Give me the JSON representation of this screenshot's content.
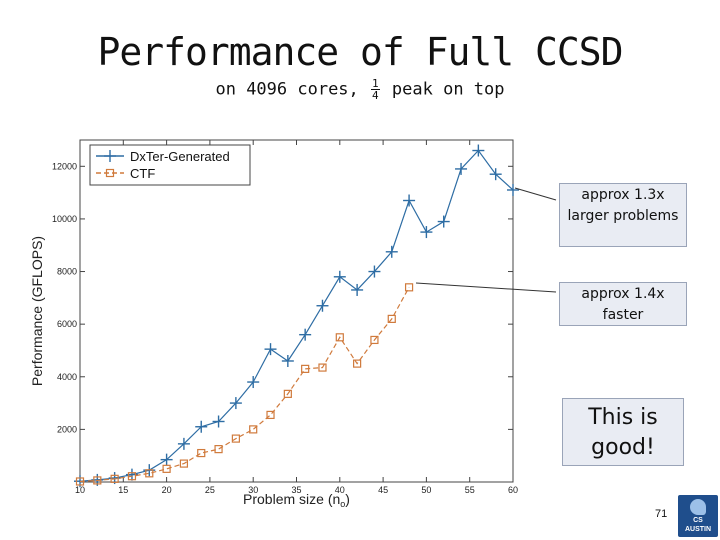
{
  "slide": {
    "title": "Performance of Full CCSD",
    "subtitle_before": "on 4096 cores,",
    "subtitle_frac_num": "1",
    "subtitle_frac_den": "4",
    "subtitle_after": "peak on top",
    "callouts": [
      "approx 1.3x larger problems",
      "approx 1.4x faster",
      "This is good!"
    ],
    "page_number": "71",
    "logo_text_1": "CS",
    "logo_text_2": "AUSTIN"
  },
  "chart_data": {
    "type": "line",
    "title": "",
    "xlabel": "Problem size (n",
    "xlabel_sub": "o",
    "xlabel_end": ")",
    "ylabel": "Performance (GFLOPS)",
    "xlim": [
      10,
      60
    ],
    "ylim": [
      0,
      13000
    ],
    "xticks": [
      10,
      15,
      20,
      25,
      30,
      35,
      40,
      45,
      50,
      55,
      60
    ],
    "yticks": [
      2000,
      4000,
      6000,
      8000,
      10000,
      12000
    ],
    "legend_position": "top-left",
    "series": [
      {
        "name": "DxTer-Generated",
        "color": "#2e6da4",
        "marker": "plus",
        "dashed": false,
        "x": [
          10,
          12,
          14,
          16,
          18,
          20,
          22,
          24,
          26,
          28,
          30,
          32,
          34,
          36,
          38,
          40,
          42,
          44,
          46,
          48,
          50,
          52,
          54,
          56,
          58,
          60
        ],
        "y": [
          30,
          80,
          150,
          280,
          450,
          850,
          1450,
          2100,
          2300,
          3000,
          3800,
          5050,
          4600,
          5600,
          6700,
          7800,
          7300,
          8000,
          8750,
          10700,
          9500,
          9900,
          11900,
          12600,
          11700,
          11100
        ]
      },
      {
        "name": "CTF",
        "color": "#d07a3c",
        "marker": "square",
        "dashed": true,
        "x": [
          10,
          12,
          14,
          16,
          18,
          20,
          22,
          24,
          26,
          28,
          30,
          32,
          34,
          36,
          38,
          40,
          42,
          44,
          46,
          48
        ],
        "y": [
          20,
          60,
          120,
          220,
          330,
          500,
          700,
          1100,
          1250,
          1650,
          2000,
          2550,
          3350,
          4300,
          4350,
          5500,
          4500,
          5400,
          6200,
          7400
        ]
      }
    ]
  }
}
